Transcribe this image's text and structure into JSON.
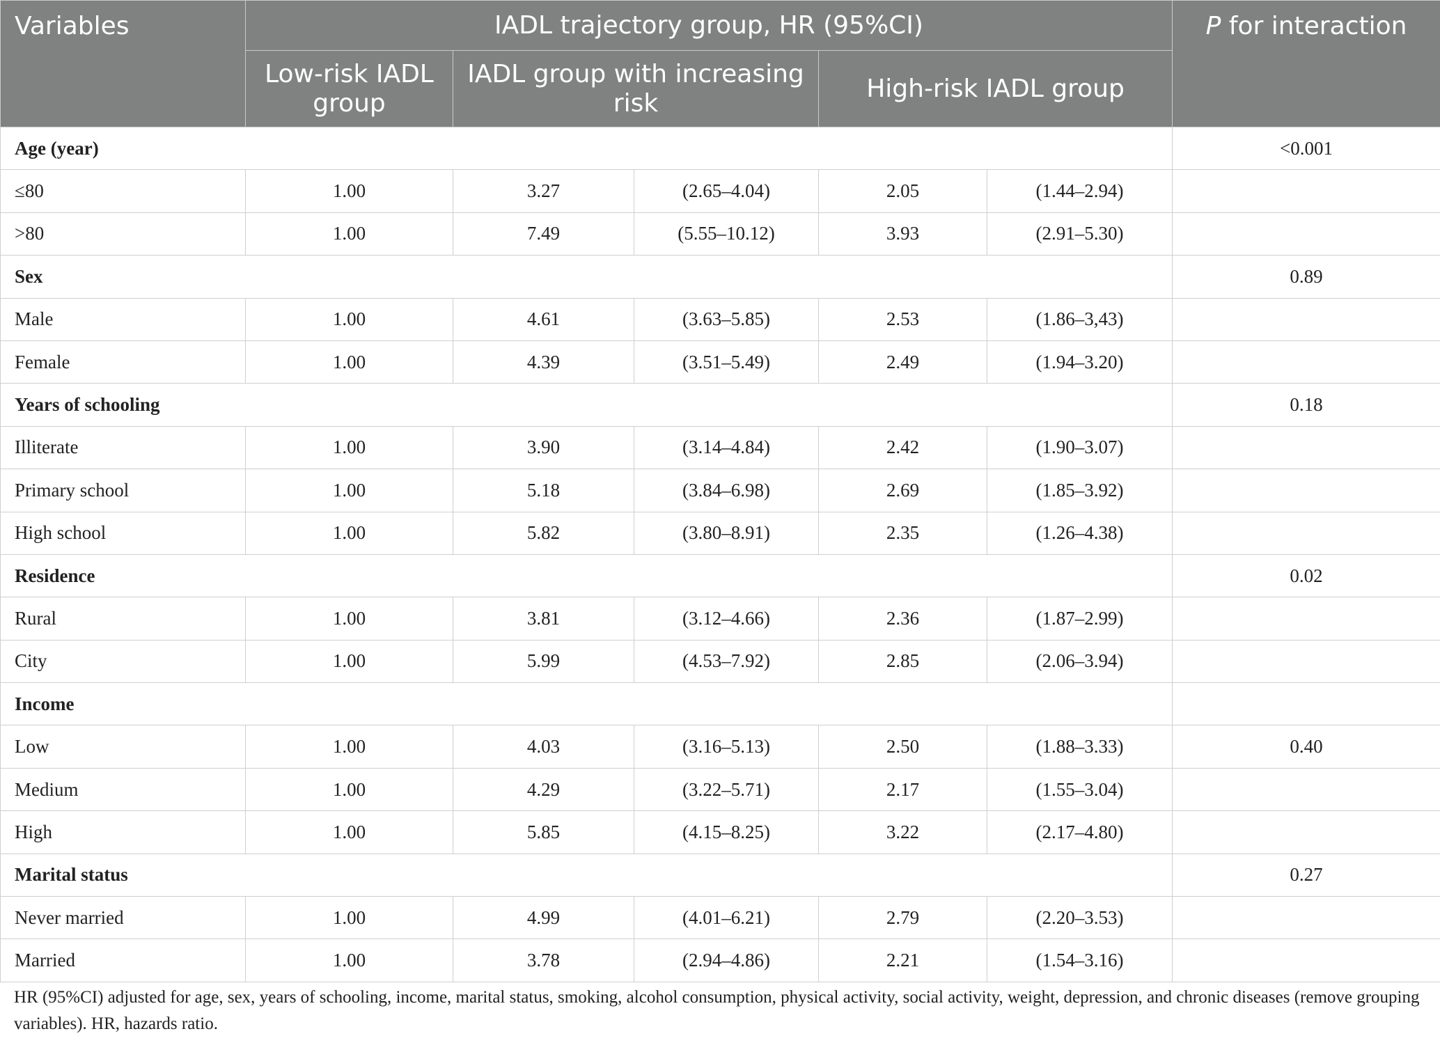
{
  "header": {
    "variables": "Variables",
    "trajectory_group": "IADL trajectory group, HR (95%CI)",
    "p_italic": "P",
    "p_rest": " for interaction",
    "low_risk": "Low-risk IADL group",
    "increasing_risk": "IADL group with increasing risk",
    "high_risk": "High-risk IADL group"
  },
  "rows": [
    {
      "type": "cat",
      "label": "Age (year)",
      "p": "<0.001"
    },
    {
      "type": "data",
      "label": "≤80",
      "low": "1.00",
      "inc_hr": "3.27",
      "inc_ci": "(2.65–4.04)",
      "high_hr": "2.05",
      "high_ci": "(1.44–2.94)",
      "p": ""
    },
    {
      "type": "data",
      "label": ">80",
      "low": "1.00",
      "inc_hr": "7.49",
      "inc_ci": "(5.55–10.12)",
      "high_hr": "3.93",
      "high_ci": "(2.91–5.30)",
      "p": ""
    },
    {
      "type": "cat",
      "label": "Sex",
      "p": "0.89"
    },
    {
      "type": "data",
      "label": "Male",
      "low": "1.00",
      "inc_hr": "4.61",
      "inc_ci": "(3.63–5.85)",
      "high_hr": "2.53",
      "high_ci": "(1.86–3,43)",
      "p": ""
    },
    {
      "type": "data",
      "label": "Female",
      "low": "1.00",
      "inc_hr": "4.39",
      "inc_ci": "(3.51–5.49)",
      "high_hr": "2.49",
      "high_ci": "(1.94–3.20)",
      "p": ""
    },
    {
      "type": "cat",
      "label": "Years of schooling",
      "p": "0.18"
    },
    {
      "type": "data",
      "label": "Illiterate",
      "low": "1.00",
      "inc_hr": "3.90",
      "inc_ci": "(3.14–4.84)",
      "high_hr": "2.42",
      "high_ci": "(1.90–3.07)",
      "p": ""
    },
    {
      "type": "data",
      "label": "Primary school",
      "low": "1.00",
      "inc_hr": "5.18",
      "inc_ci": "(3.84–6.98)",
      "high_hr": "2.69",
      "high_ci": "(1.85–3.92)",
      "p": ""
    },
    {
      "type": "data",
      "label": "High school",
      "low": "1.00",
      "inc_hr": "5.82",
      "inc_ci": "(3.80–8.91)",
      "high_hr": "2.35",
      "high_ci": "(1.26–4.38)",
      "p": ""
    },
    {
      "type": "cat",
      "label": "Residence",
      "p": "0.02"
    },
    {
      "type": "data",
      "label": "Rural",
      "low": "1.00",
      "inc_hr": "3.81",
      "inc_ci": "(3.12–4.66)",
      "high_hr": "2.36",
      "high_ci": "(1.87–2.99)",
      "p": ""
    },
    {
      "type": "data",
      "label": "City",
      "low": "1.00",
      "inc_hr": "5.99",
      "inc_ci": "(4.53–7.92)",
      "high_hr": "2.85",
      "high_ci": "(2.06–3.94)",
      "p": ""
    },
    {
      "type": "cat",
      "label": "Income",
      "p": ""
    },
    {
      "type": "data",
      "label": "Low",
      "low": "1.00",
      "inc_hr": "4.03",
      "inc_ci": "(3.16–5.13)",
      "high_hr": "2.50",
      "high_ci": "(1.88–3.33)",
      "p": "0.40"
    },
    {
      "type": "data",
      "label": "Medium",
      "low": "1.00",
      "inc_hr": "4.29",
      "inc_ci": "(3.22–5.71)",
      "high_hr": "2.17",
      "high_ci": "(1.55–3.04)",
      "p": ""
    },
    {
      "type": "data",
      "label": "High",
      "low": "1.00",
      "inc_hr": "5.85",
      "inc_ci": "(4.15–8.25)",
      "high_hr": "3.22",
      "high_ci": "(2.17–4.80)",
      "p": ""
    },
    {
      "type": "cat",
      "label": "Marital status",
      "p": "0.27"
    },
    {
      "type": "data",
      "label": "Never married",
      "low": "1.00",
      "inc_hr": "4.99",
      "inc_ci": "(4.01–6.21)",
      "high_hr": "2.79",
      "high_ci": "(2.20–3.53)",
      "p": ""
    },
    {
      "type": "data",
      "label": "Married",
      "low": "1.00",
      "inc_hr": "3.78",
      "inc_ci": "(2.94–4.86)",
      "high_hr": "2.21",
      "high_ci": "(1.54–3.16)",
      "p": ""
    }
  ],
  "footnote": "HR (95%CI) adjusted for age, sex, years of schooling, income, marital status, smoking, alcohol consumption, physical activity, social activity, weight, depression, and chronic diseases (remove grouping variables). HR, hazards ratio."
}
